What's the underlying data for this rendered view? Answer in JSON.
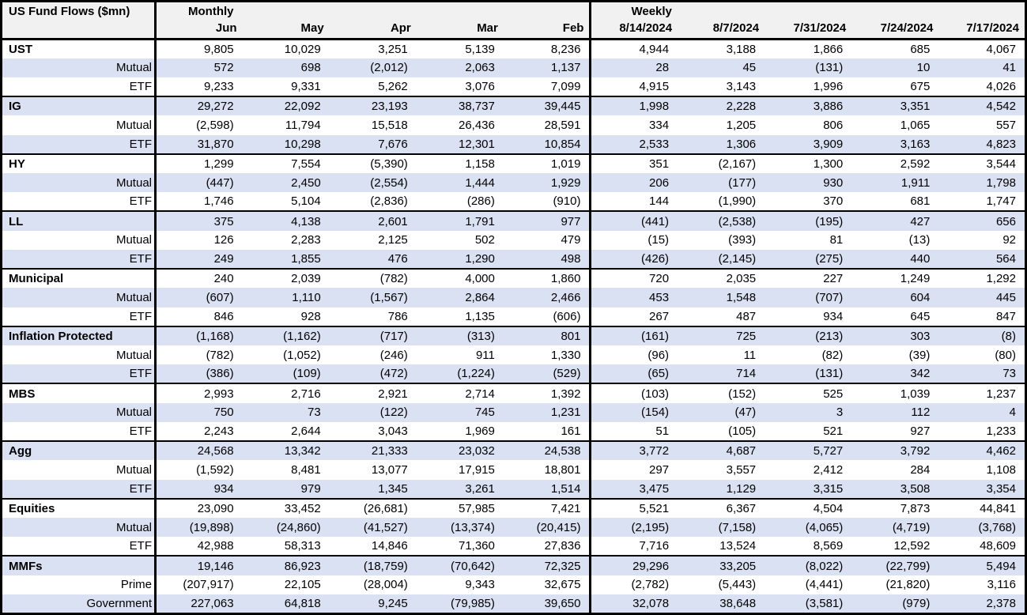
{
  "title": "US Fund Flows ($mn)",
  "colors": {
    "row_alt_bg": "#D9E1F2",
    "header_bg": "#F1F1F1",
    "border": "#000000",
    "text": "#000000"
  },
  "chart_data": {
    "type": "table",
    "title": "US Fund Flows ($mn)",
    "units": "$mn",
    "sections": [
      {
        "label": "Monthly",
        "columns": [
          "Jun",
          "May",
          "Apr",
          "Mar",
          "Feb"
        ]
      },
      {
        "label": "Weekly",
        "columns": [
          "8/14/2024",
          "8/7/2024",
          "7/31/2024",
          "7/24/2024",
          "7/17/2024"
        ]
      }
    ],
    "negative_format": "parentheses",
    "groups": [
      {
        "name": "UST",
        "rows": [
          {
            "label": "UST",
            "emphasis": true,
            "values": [
              9805,
              10029,
              3251,
              5139,
              8236,
              4944,
              3188,
              1866,
              685,
              4067
            ]
          },
          {
            "label": "Mutual",
            "emphasis": false,
            "values": [
              572,
              698,
              -2012,
              2063,
              1137,
              28,
              45,
              -131,
              10,
              41
            ]
          },
          {
            "label": "ETF",
            "emphasis": false,
            "values": [
              9233,
              9331,
              5262,
              3076,
              7099,
              4915,
              3143,
              1996,
              675,
              4026
            ]
          }
        ]
      },
      {
        "name": "IG",
        "rows": [
          {
            "label": "IG",
            "emphasis": true,
            "values": [
              29272,
              22092,
              23193,
              38737,
              39445,
              1998,
              2228,
              3886,
              3351,
              4542
            ]
          },
          {
            "label": "Mutual",
            "emphasis": false,
            "values": [
              -2598,
              11794,
              15518,
              26436,
              28591,
              334,
              1205,
              806,
              1065,
              557
            ]
          },
          {
            "label": "ETF",
            "emphasis": false,
            "values": [
              31870,
              10298,
              7676,
              12301,
              10854,
              2533,
              1306,
              3909,
              3163,
              4823
            ]
          }
        ]
      },
      {
        "name": "HY",
        "rows": [
          {
            "label": "HY",
            "emphasis": true,
            "values": [
              1299,
              7554,
              -5390,
              1158,
              1019,
              351,
              -2167,
              1300,
              2592,
              3544
            ]
          },
          {
            "label": "Mutual",
            "emphasis": false,
            "values": [
              -447,
              2450,
              -2554,
              1444,
              1929,
              206,
              -177,
              930,
              1911,
              1798
            ]
          },
          {
            "label": "ETF",
            "emphasis": false,
            "values": [
              1746,
              5104,
              -2836,
              -286,
              -910,
              144,
              -1990,
              370,
              681,
              1747
            ]
          }
        ]
      },
      {
        "name": "LL",
        "rows": [
          {
            "label": "LL",
            "emphasis": true,
            "values": [
              375,
              4138,
              2601,
              1791,
              977,
              -441,
              -2538,
              -195,
              427,
              656
            ]
          },
          {
            "label": "Mutual",
            "emphasis": false,
            "values": [
              126,
              2283,
              2125,
              502,
              479,
              -15,
              -393,
              81,
              -13,
              92
            ]
          },
          {
            "label": "ETF",
            "emphasis": false,
            "values": [
              249,
              1855,
              476,
              1290,
              498,
              -426,
              -2145,
              -275,
              440,
              564
            ]
          }
        ]
      },
      {
        "name": "Municipal",
        "rows": [
          {
            "label": "Municipal",
            "emphasis": true,
            "values": [
              240,
              2039,
              -782,
              4000,
              1860,
              720,
              2035,
              227,
              1249,
              1292
            ]
          },
          {
            "label": "Mutual",
            "emphasis": false,
            "values": [
              -607,
              1110,
              -1567,
              2864,
              2466,
              453,
              1548,
              -707,
              604,
              445
            ]
          },
          {
            "label": "ETF",
            "emphasis": false,
            "values": [
              846,
              928,
              786,
              1135,
              -606,
              267,
              487,
              934,
              645,
              847
            ]
          }
        ]
      },
      {
        "name": "Inflation Protected",
        "rows": [
          {
            "label": "Inflation Protected",
            "emphasis": true,
            "values": [
              -1168,
              -1162,
              -717,
              -313,
              801,
              -161,
              725,
              -213,
              303,
              -8
            ]
          },
          {
            "label": "Mutual",
            "emphasis": false,
            "values": [
              -782,
              -1052,
              -246,
              911,
              1330,
              -96,
              11,
              -82,
              -39,
              -80
            ]
          },
          {
            "label": "ETF",
            "emphasis": false,
            "values": [
              -386,
              -109,
              -472,
              -1224,
              -529,
              -65,
              714,
              -131,
              342,
              73
            ]
          }
        ]
      },
      {
        "name": "MBS",
        "rows": [
          {
            "label": "MBS",
            "emphasis": true,
            "values": [
              2993,
              2716,
              2921,
              2714,
              1392,
              -103,
              -152,
              525,
              1039,
              1237
            ]
          },
          {
            "label": "Mutual",
            "emphasis": false,
            "values": [
              750,
              73,
              -122,
              745,
              1231,
              -154,
              -47,
              3,
              112,
              4
            ]
          },
          {
            "label": "ETF",
            "emphasis": false,
            "values": [
              2243,
              2644,
              3043,
              1969,
              161,
              51,
              -105,
              521,
              927,
              1233
            ]
          }
        ]
      },
      {
        "name": "Agg",
        "rows": [
          {
            "label": "Agg",
            "emphasis": true,
            "values": [
              24568,
              13342,
              21333,
              23032,
              24538,
              3772,
              4687,
              5727,
              3792,
              4462
            ]
          },
          {
            "label": "Mutual",
            "emphasis": false,
            "values": [
              -1592,
              8481,
              13077,
              17915,
              18801,
              297,
              3557,
              2412,
              284,
              1108
            ]
          },
          {
            "label": "ETF",
            "emphasis": false,
            "values": [
              934,
              979,
              1345,
              3261,
              1514,
              3475,
              1129,
              3315,
              3508,
              3354
            ]
          }
        ]
      },
      {
        "name": "Equities",
        "rows": [
          {
            "label": "Equities",
            "emphasis": true,
            "values": [
              23090,
              33452,
              -26681,
              57985,
              7421,
              5521,
              6367,
              4504,
              7873,
              44841
            ]
          },
          {
            "label": "Mutual",
            "emphasis": false,
            "values": [
              -19898,
              -24860,
              -41527,
              -13374,
              -20415,
              -2195,
              -7158,
              -4065,
              -4719,
              -3768
            ]
          },
          {
            "label": "ETF",
            "emphasis": false,
            "values": [
              42988,
              58313,
              14846,
              71360,
              27836,
              7716,
              13524,
              8569,
              12592,
              48609
            ]
          }
        ]
      },
      {
        "name": "MMFs",
        "rows": [
          {
            "label": "MMFs",
            "emphasis": true,
            "values": [
              19146,
              86923,
              -18759,
              -70642,
              72325,
              29296,
              33205,
              -8022,
              -22799,
              5494
            ]
          },
          {
            "label": "Prime",
            "emphasis": false,
            "values": [
              -207917,
              22105,
              -28004,
              9343,
              32675,
              -2782,
              -5443,
              -4441,
              -21820,
              3116
            ]
          },
          {
            "label": "Government",
            "emphasis": false,
            "values": [
              227063,
              64818,
              9245,
              -79985,
              39650,
              32078,
              38648,
              -3581,
              -979,
              2378
            ]
          }
        ]
      }
    ]
  }
}
